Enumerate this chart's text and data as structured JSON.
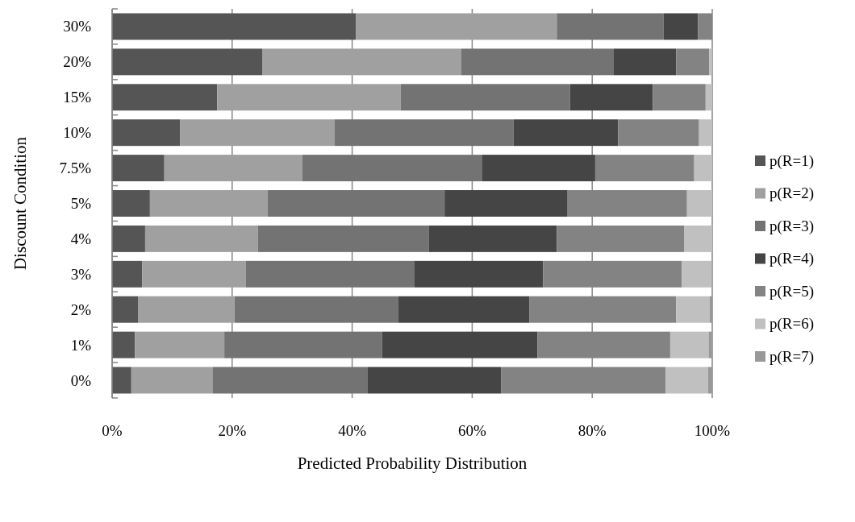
{
  "chart_data": {
    "type": "bar",
    "orientation": "horizontal",
    "stacked": true,
    "xlabel": "Predicted Probability Distribution",
    "ylabel": "Discount Condition",
    "categories": [
      "30%",
      "20%",
      "15%",
      "10%",
      "7.5%",
      "5%",
      "4%",
      "3%",
      "2%",
      "1%",
      "0%"
    ],
    "series": [
      {
        "name": "p(R=1)",
        "color": "#555555",
        "values": [
          40.6,
          25.0,
          17.5,
          11.3,
          8.7,
          6.3,
          5.5,
          5.0,
          4.3,
          3.8,
          3.2
        ]
      },
      {
        "name": "p(R=2)",
        "color": "#a0a0a0",
        "values": [
          33.5,
          33.2,
          30.6,
          25.8,
          23.0,
          19.6,
          18.8,
          17.3,
          16.1,
          14.9,
          13.6
        ]
      },
      {
        "name": "p(R=3)",
        "color": "#737373",
        "values": [
          17.8,
          25.4,
          28.2,
          29.8,
          29.9,
          29.5,
          28.5,
          28.1,
          27.3,
          26.3,
          25.8
        ]
      },
      {
        "name": "p(R=4)",
        "color": "#454545",
        "values": [
          5.7,
          10.4,
          13.8,
          17.4,
          18.9,
          20.5,
          21.3,
          21.4,
          21.8,
          25.9,
          22.2
        ]
      },
      {
        "name": "p(R=5)",
        "color": "#838383",
        "values": [
          2.4,
          5.5,
          8.8,
          13.5,
          16.5,
          19.9,
          21.2,
          23.1,
          24.5,
          22.1,
          27.4
        ]
      },
      {
        "name": "p(R=6)",
        "color": "#c0c0c0",
        "values": [
          0,
          0.5,
          1.1,
          2.2,
          3.0,
          4.2,
          4.7,
          5.0,
          5.6,
          6.4,
          7.1
        ]
      },
      {
        "name": "p(R=7)",
        "color": "#989898",
        "values": [
          0,
          0,
          0,
          0,
          0,
          0,
          0,
          null,
          0.4,
          0.5,
          0.7
        ]
      }
    ],
    "xlim": [
      0,
      100
    ],
    "xticks": [
      {
        "value": 0,
        "label": "0%"
      },
      {
        "value": 20,
        "label": "20%"
      },
      {
        "value": 40,
        "label": "40%"
      },
      {
        "value": 60,
        "label": "60%"
      },
      {
        "value": 80,
        "label": "80%"
      },
      {
        "value": 100,
        "label": "100%"
      }
    ],
    "grid": "x",
    "legend": "right"
  }
}
